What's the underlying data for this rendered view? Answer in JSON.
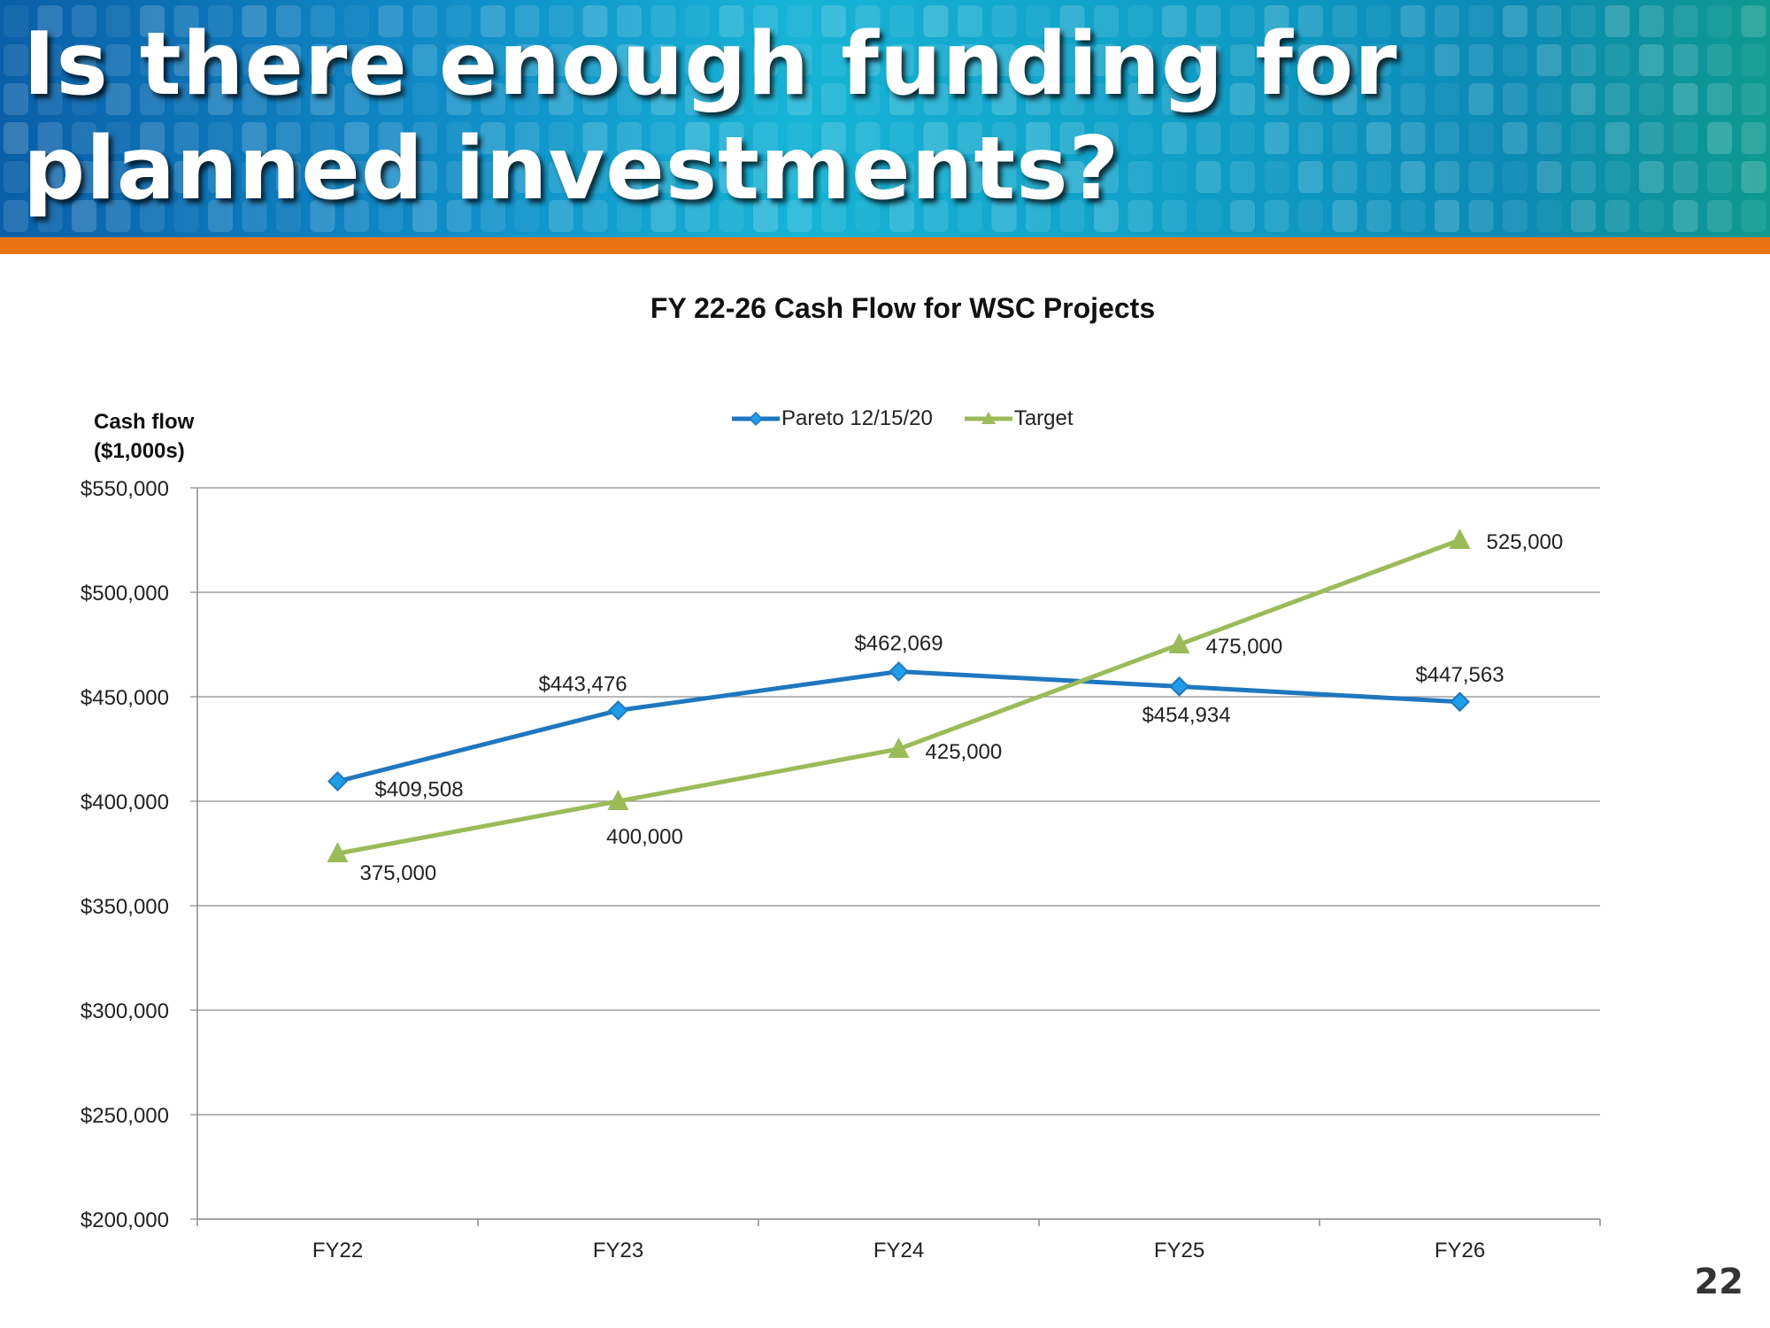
{
  "slide": {
    "title": "Is there enough funding for planned investments?",
    "page_number": "22",
    "accent_color": "#e87511"
  },
  "chart_data": {
    "type": "line",
    "title": "FY 22-26 Cash Flow for WSC Projects",
    "ylabel_line1": "Cash flow",
    "ylabel_line2": "($1,000s)",
    "xlabel": "",
    "categories": [
      "FY22",
      "FY23",
      "FY24",
      "FY25",
      "FY26"
    ],
    "ylim": [
      200000,
      550000
    ],
    "ytick_values": [
      200000,
      250000,
      300000,
      350000,
      400000,
      450000,
      500000,
      550000
    ],
    "ytick_labels": [
      "$200,000",
      "$250,000",
      "$300,000",
      "$350,000",
      "$400,000",
      "$450,000",
      "$500,000",
      "$550,000"
    ],
    "grid": true,
    "legend_position": "top-center",
    "series": [
      {
        "name": "Pareto 12/15/20",
        "marker": "diamond",
        "color": "#1f77c0",
        "values": [
          409508,
          443476,
          462069,
          454934,
          447563
        ],
        "data_labels": [
          "$409,508",
          "$443,476",
          "$462,069",
          "$454,934",
          "$447,563"
        ]
      },
      {
        "name": "Target",
        "marker": "triangle",
        "color": "#9bbb59",
        "values": [
          375000,
          400000,
          425000,
          475000,
          525000
        ],
        "data_labels": [
          "375,000",
          "400,000",
          "425,000",
          "475,000",
          "525,000"
        ]
      }
    ]
  }
}
